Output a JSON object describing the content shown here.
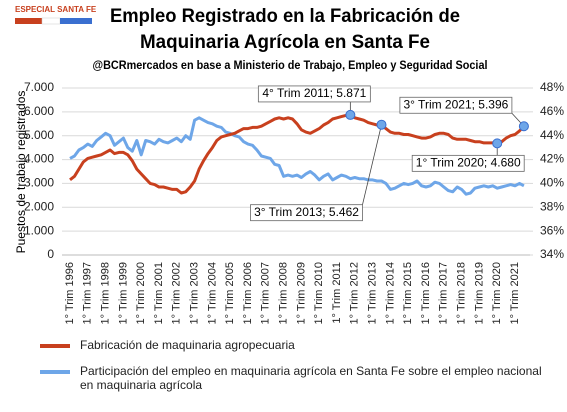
{
  "badge": "ESPECIAL SANTA FE",
  "chart_data": {
    "type": "line",
    "title": [
      "Empleo Registrado en la Fabricación de",
      "Maquinaria Agrícola en Santa Fe"
    ],
    "subtitle": "@BCRmercados en base a Ministerio de Trabajo,  Empleo y Seguridad Social",
    "ylabel": "Puestos de trabajo registrados",
    "categories": [
      "1° Trim 1996",
      null,
      null,
      null,
      "1° Trim 1997",
      null,
      null,
      null,
      "1° Trim 1998",
      null,
      null,
      null,
      "1° Trim 1999",
      null,
      null,
      null,
      "1° Trim 2000",
      null,
      null,
      null,
      "1° Trim 2001",
      null,
      null,
      null,
      "1° Trim 2002",
      null,
      null,
      null,
      "1° Trim 2003",
      null,
      null,
      null,
      "1° Trim 2004",
      null,
      null,
      null,
      "1° Trim 2005",
      null,
      null,
      null,
      "1° Trim 2006",
      null,
      null,
      null,
      "1° Trim 2007",
      null,
      null,
      null,
      "1° Trim 2008",
      null,
      null,
      null,
      "1° Trim 2009",
      null,
      null,
      null,
      "1° Trim 2010",
      null,
      null,
      null,
      "1° Trim 2011",
      null,
      null,
      null,
      "1° Trim 2012",
      null,
      null,
      null,
      "1° Trim 2013",
      null,
      null,
      null,
      "1° Trim 2014",
      null,
      null,
      null,
      "1° Trim 2015",
      null,
      null,
      null,
      "1° Trim 2016",
      null,
      null,
      null,
      "1° Trim 2017",
      null,
      null,
      null,
      "1° Trim 2018",
      null,
      null,
      null,
      "1° Trim 2019",
      null,
      null,
      null,
      "1° Trim 2020",
      null,
      null,
      null,
      "1° Trim 2021",
      null,
      null
    ],
    "series": [
      {
        "name": "Fabricación de maquinaria agropecuaria",
        "color": "#c8401e",
        "values": [
          3150,
          3300,
          3600,
          3900,
          4050,
          4100,
          4150,
          4200,
          4300,
          4400,
          4250,
          4300,
          4300,
          4200,
          3950,
          3600,
          3400,
          3200,
          3000,
          2950,
          2850,
          2850,
          2800,
          2750,
          2750,
          2600,
          2650,
          2850,
          3100,
          3600,
          3950,
          4250,
          4500,
          4800,
          4950,
          5000,
          5050,
          5100,
          5200,
          5300,
          5300,
          5350,
          5350,
          5400,
          5500,
          5600,
          5700,
          5750,
          5700,
          5750,
          5700,
          5500,
          5250,
          5150,
          5100,
          5200,
          5300,
          5450,
          5550,
          5700,
          5750,
          5800,
          5850,
          5871,
          5750,
          5700,
          5650,
          5550,
          5500,
          5450,
          5462,
          5300,
          5150,
          5100,
          5100,
          5050,
          5050,
          5000,
          4950,
          4900,
          4900,
          4950,
          5050,
          5100,
          5100,
          5050,
          4900,
          4850,
          4850,
          4850,
          4800,
          4750,
          4750,
          4700,
          4700,
          4700,
          4680,
          4750,
          4900,
          5000,
          5050,
          5200,
          5396
        ]
      },
      {
        "name": "Participación del empleo en maquinaria agrícola en Santa Fe sobre el empleo nacional en maquinaria agrícola",
        "color": "#6ea6e8",
        "axis": "y2",
        "values": [
          42.1,
          42.3,
          42.8,
          43.0,
          43.3,
          43.1,
          43.6,
          43.9,
          44.2,
          44.0,
          43.2,
          43.5,
          43.8,
          43.0,
          42.7,
          43.6,
          42.4,
          43.6,
          43.5,
          43.3,
          43.7,
          43.5,
          43.4,
          43.6,
          43.8,
          43.5,
          44.0,
          43.7,
          45.3,
          45.5,
          45.3,
          45.1,
          45.0,
          44.8,
          44.7,
          44.3,
          44.2,
          44.0,
          43.9,
          43.5,
          43.3,
          43.2,
          42.8,
          42.3,
          42.2,
          42.1,
          41.6,
          41.5,
          40.6,
          40.7,
          40.6,
          40.7,
          40.5,
          40.8,
          41.0,
          40.7,
          40.3,
          40.6,
          40.8,
          40.3,
          40.5,
          40.7,
          40.6,
          40.4,
          40.5,
          40.4,
          40.4,
          40.3,
          40.3,
          40.2,
          40.2,
          40.0,
          39.5,
          39.6,
          39.8,
          40.0,
          39.9,
          40.0,
          40.2,
          39.8,
          39.7,
          39.8,
          40.1,
          40.0,
          39.7,
          39.4,
          39.3,
          39.7,
          39.5,
          39.1,
          39.2,
          39.6,
          39.7,
          39.8,
          39.7,
          39.8,
          39.6,
          39.7,
          39.8,
          39.9,
          39.8,
          40.0,
          39.8
        ]
      }
    ],
    "ylim": [
      0,
      7000
    ],
    "yticks": [
      0,
      {
        "value": 1000,
        "label": "1.000"
      },
      {
        "value": 2000,
        "label": "2.000"
      },
      {
        "value": 3000,
        "label": "3.000"
      },
      {
        "value": 4000,
        "label": "4.000"
      },
      {
        "value": 5000,
        "label": "5.000"
      },
      {
        "value": 6000,
        "label": "6.000"
      },
      {
        "value": 7000,
        "label": "7.000"
      }
    ],
    "y2lim": [
      34,
      48
    ],
    "y2ticks": [
      {
        "value": 34,
        "label": "34%"
      },
      {
        "value": 36,
        "label": "36%"
      },
      {
        "value": 38,
        "label": "38%"
      },
      {
        "value": 40,
        "label": "40%"
      },
      {
        "value": 42,
        "label": "42%"
      },
      {
        "value": 44,
        "label": "44%"
      },
      {
        "value": 46,
        "label": "46%"
      },
      {
        "value": 48,
        "label": "48%"
      }
    ],
    "grid": true,
    "annotations": [
      {
        "text": "4° Trim 2011; 5.871",
        "value": 5871
      },
      {
        "text": "3° Trim 2013; 5.462",
        "value": 5462
      },
      {
        "text": "3° Trim 2021; 5.396",
        "value": 5396
      },
      {
        "text": "1° Trim 2020; 4.680",
        "value": 4680
      }
    ]
  }
}
